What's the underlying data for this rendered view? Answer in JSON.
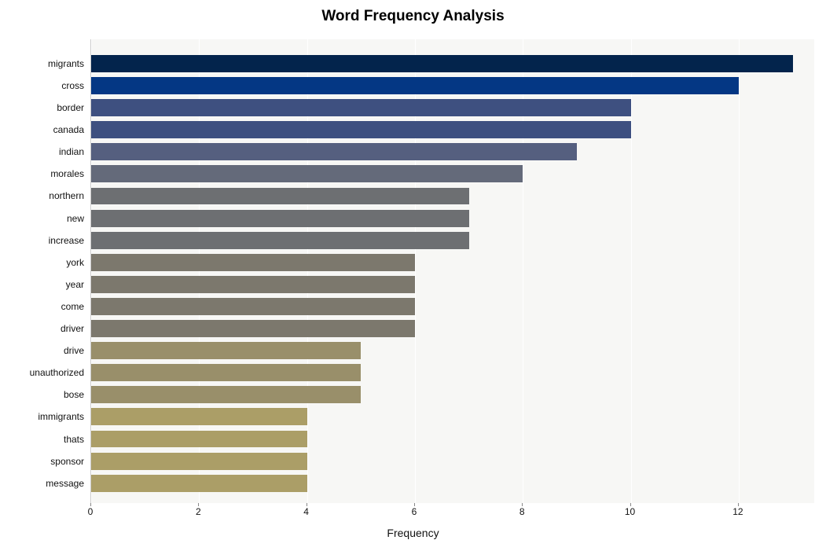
{
  "chart": {
    "type": "bar",
    "orientation": "horizontal",
    "title": "Word Frequency Analysis",
    "title_fontsize": 19,
    "title_fontweight": "bold",
    "xlabel": "Frequency",
    "xlabel_fontsize": 14,
    "ylabel_fontsize": 12,
    "xtick_fontsize": 12,
    "background_color": "#ffffff",
    "plot_background_color": "#f7f7f5",
    "grid_color": "#ffffff",
    "x_min": 0,
    "x_max": 13.4,
    "x_ticks": [
      0,
      2,
      4,
      6,
      8,
      10,
      12
    ],
    "bar_height_ratio": 0.78,
    "categories": [
      "migrants",
      "cross",
      "border",
      "canada",
      "indian",
      "morales",
      "northern",
      "new",
      "increase",
      "york",
      "year",
      "come",
      "driver",
      "drive",
      "unauthorized",
      "bose",
      "immigrants",
      "thats",
      "sponsor",
      "message"
    ],
    "values": [
      13,
      12,
      10,
      10,
      9,
      8,
      7,
      7,
      7,
      6,
      6,
      6,
      6,
      5,
      5,
      5,
      4,
      4,
      4,
      4
    ],
    "bar_colors": [
      "#03244c",
      "#043784",
      "#3e5080",
      "#3e5080",
      "#555f7f",
      "#646a7a",
      "#6d6f72",
      "#6d6f72",
      "#6d6f72",
      "#7c786d",
      "#7c786d",
      "#7c786d",
      "#7c786d",
      "#998f6a",
      "#998f6a",
      "#998f6a",
      "#ab9e67",
      "#ab9e67",
      "#ab9e67",
      "#ab9e67"
    ]
  }
}
